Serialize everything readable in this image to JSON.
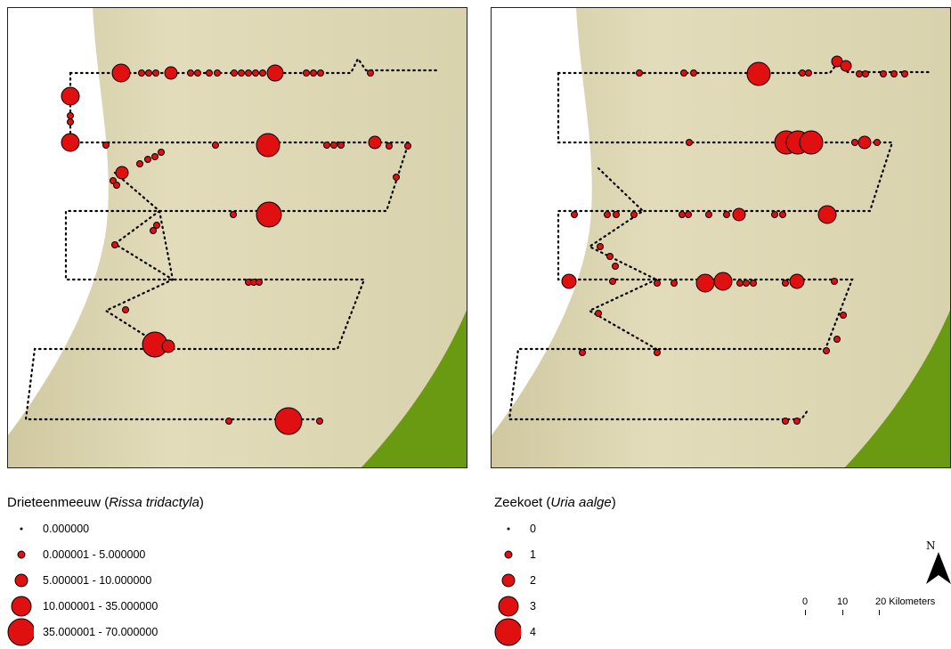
{
  "maps": [
    {
      "name": "drieteenmeeuw",
      "title_common": "Drieteenmeeuw (",
      "title_species": "Rissa tridactyla",
      "title_close": ")",
      "legend": [
        {
          "label": "0.000000",
          "r": 1.5
        },
        {
          "label": "0.000001 - 5.000000",
          "r": 4
        },
        {
          "label": "5.000001 - 10.000000",
          "r": 7
        },
        {
          "label": "10.000001 - 35.000000",
          "r": 11
        },
        {
          "label": "35.000001 - 70.000000",
          "r": 15
        }
      ]
    },
    {
      "name": "zeekoet",
      "title_common": "Zeekoet (",
      "title_species": "Uria aalge",
      "title_close": ")",
      "legend": [
        {
          "label": "0",
          "r": 1.5
        },
        {
          "label": "1",
          "r": 4
        },
        {
          "label": "2",
          "r": 7
        },
        {
          "label": "3",
          "r": 11
        },
        {
          "label": "4",
          "r": 15
        }
      ]
    }
  ],
  "north_label": "N",
  "scale_bar": {
    "labels": [
      "0",
      "10",
      "20 Kilometers"
    ]
  },
  "colors": {
    "symbol_fill": "#e01010",
    "symbol_stroke": "#000000",
    "sea": "#dcd6b2",
    "land": "#6a9a12",
    "track_dots": "#000000"
  }
}
